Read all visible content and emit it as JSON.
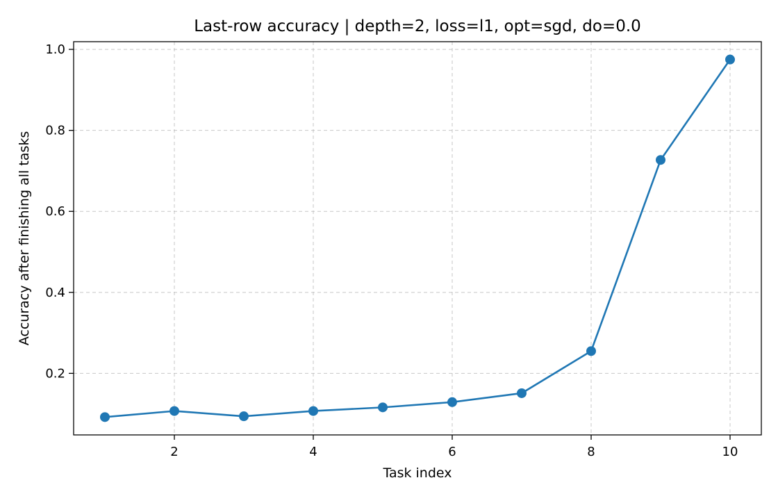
{
  "chart_data": {
    "type": "line",
    "title": "Last-row accuracy | depth=2, loss=l1, opt=sgd, do=0.0",
    "xlabel": "Task index",
    "ylabel": "Accuracy after finishing all tasks",
    "x": [
      1,
      2,
      3,
      4,
      5,
      6,
      7,
      8,
      9,
      10
    ],
    "series": [
      {
        "values": [
          0.092,
          0.107,
          0.094,
          0.107,
          0.116,
          0.129,
          0.151,
          0.255,
          0.727,
          0.975
        ]
      }
    ],
    "xlim": [
      0.55,
      10.45
    ],
    "ylim": [
      0.048,
      1.019
    ],
    "xticks": [
      2,
      4,
      6,
      8,
      10
    ],
    "xtick_labels": [
      "2",
      "4",
      "6",
      "8",
      "10"
    ],
    "yticks": [
      0.2,
      0.4,
      0.6,
      0.8,
      1.0
    ],
    "ytick_labels": [
      "0.2",
      "0.4",
      "0.6",
      "0.8",
      "1.0"
    ],
    "grid": true,
    "grid_style": "dashed",
    "marker": "circle",
    "line_color": "#1f77b4"
  }
}
